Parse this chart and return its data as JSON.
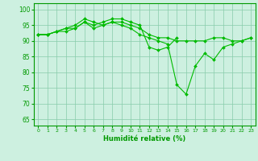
{
  "title": "",
  "xlabel": "Humidité relative (%)",
  "ylabel": "",
  "background_color": "#cdf0e0",
  "grid_color": "#88ccaa",
  "line_color": "#00bb00",
  "x_ticks": [
    0,
    1,
    2,
    3,
    4,
    5,
    6,
    7,
    8,
    9,
    10,
    11,
    12,
    13,
    14,
    15,
    16,
    17,
    18,
    19,
    20,
    21,
    22,
    23
  ],
  "y_ticks": [
    65,
    70,
    75,
    80,
    85,
    90,
    95,
    100
  ],
  "ylim": [
    63,
    102
  ],
  "xlim": [
    -0.5,
    23.5
  ],
  "series": [
    [
      92,
      92,
      93,
      94,
      94,
      96,
      95,
      96,
      97,
      97,
      96,
      95,
      88,
      87,
      88,
      91,
      null,
      null,
      null,
      null,
      null,
      null,
      null,
      null
    ],
    [
      92,
      92,
      93,
      94,
      95,
      97,
      96,
      95,
      96,
      96,
      95,
      94,
      92,
      91,
      91,
      90,
      90,
      90,
      90,
      91,
      91,
      90,
      90,
      91
    ],
    [
      92,
      92,
      93,
      93,
      94,
      96,
      94,
      95,
      96,
      95,
      94,
      92,
      91,
      90,
      89,
      76,
      73,
      82,
      86,
      84,
      88,
      89,
      90,
      91
    ]
  ]
}
